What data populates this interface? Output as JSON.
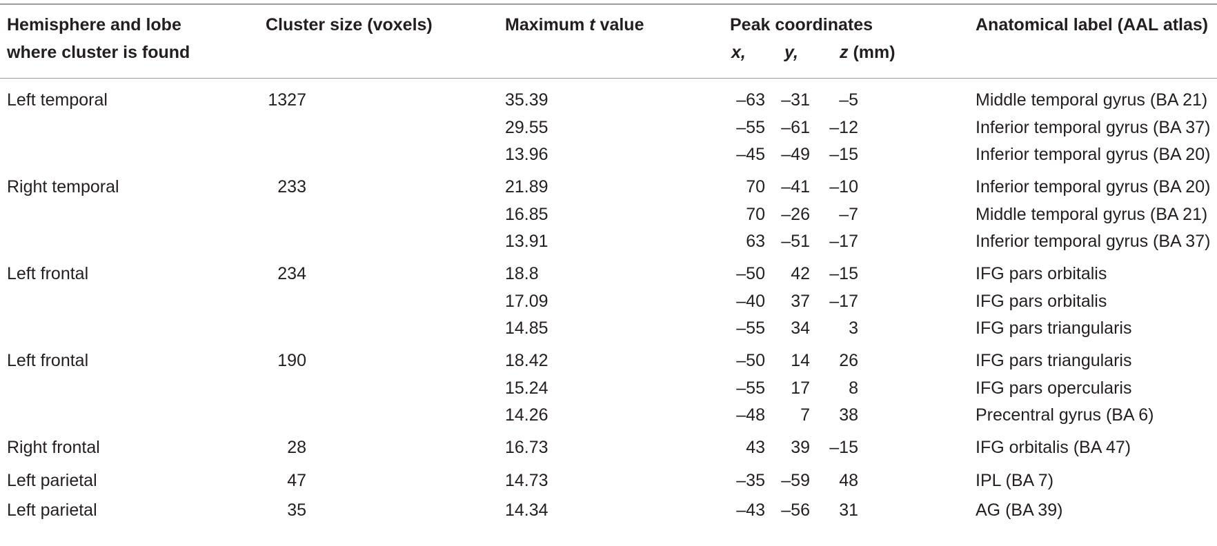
{
  "table": {
    "headers": {
      "region_line1": "Hemisphere and lobe",
      "region_line2": "where cluster is found",
      "cluster_size": "Cluster size (voxels)",
      "tmax_prefix": "Maximum ",
      "tmax_italic": "t",
      "tmax_suffix": " value",
      "peak": "Peak coordinates",
      "x": "x,",
      "y": "y,",
      "z": "z",
      "z_unit": " (mm)",
      "label": "Anatomical label (AAL atlas)"
    },
    "rows": [
      {
        "region": "Left temporal",
        "size": "1327",
        "t": "35.39",
        "x": "–63",
        "y": "–31",
        "z": "–5",
        "label": "Middle temporal gyrus (BA 21)"
      },
      {
        "region": "",
        "size": "",
        "t": "29.55",
        "x": "–55",
        "y": "–61",
        "z": "–12",
        "label": "Inferior temporal gyrus (BA 37)"
      },
      {
        "region": "",
        "size": "",
        "t": "13.96",
        "x": "–45",
        "y": "–49",
        "z": "–15",
        "label": "Inferior temporal gyrus (BA 20)"
      },
      {
        "region": "Right temporal",
        "size": "233",
        "t": "21.89",
        "x": "70",
        "y": "–41",
        "z": "–10",
        "label": "Inferior temporal gyrus (BA 20)"
      },
      {
        "region": "",
        "size": "",
        "t": "16.85",
        "x": "70",
        "y": "–26",
        "z": "–7",
        "label": "Middle temporal gyrus (BA 21)"
      },
      {
        "region": "",
        "size": "",
        "t": "13.91",
        "x": "63",
        "y": "–51",
        "z": "–17",
        "label": "Inferior temporal gyrus (BA 37)"
      },
      {
        "region": "Left frontal",
        "size": "234",
        "t": "18.8",
        "x": "–50",
        "y": "42",
        "z": "–15",
        "label": "IFG pars orbitalis"
      },
      {
        "region": "",
        "size": "",
        "t": "17.09",
        "x": "–40",
        "y": "37",
        "z": "–17",
        "label": "IFG pars orbitalis"
      },
      {
        "region": "",
        "size": "",
        "t": "14.85",
        "x": "–55",
        "y": "34",
        "z": "3",
        "label": "IFG pars triangularis"
      },
      {
        "region": "Left frontal",
        "size": "190",
        "t": "18.42",
        "x": "–50",
        "y": "14",
        "z": "26",
        "label": "IFG pars triangularis"
      },
      {
        "region": "",
        "size": "",
        "t": "15.24",
        "x": "–55",
        "y": "17",
        "z": "8",
        "label": "IFG pars opercularis"
      },
      {
        "region": "",
        "size": "",
        "t": "14.26",
        "x": "–48",
        "y": "7",
        "z": "38",
        "label": "Precentral gyrus (BA 6)"
      },
      {
        "region": "Right frontal",
        "size": "28",
        "t": "16.73",
        "x": "43",
        "y": "39",
        "z": "–15",
        "label": "IFG orbitalis (BA 47)"
      },
      {
        "region": "Left parietal",
        "size": "47",
        "t": "14.73",
        "x": "–35",
        "y": "–59",
        "z": "48",
        "label": "IPL (BA 7)"
      },
      {
        "region": "Left parietal",
        "size": "35",
        "t": "14.34",
        "x": "–43",
        "y": "–56",
        "z": "31",
        "label": "AG (BA 39)"
      }
    ]
  }
}
